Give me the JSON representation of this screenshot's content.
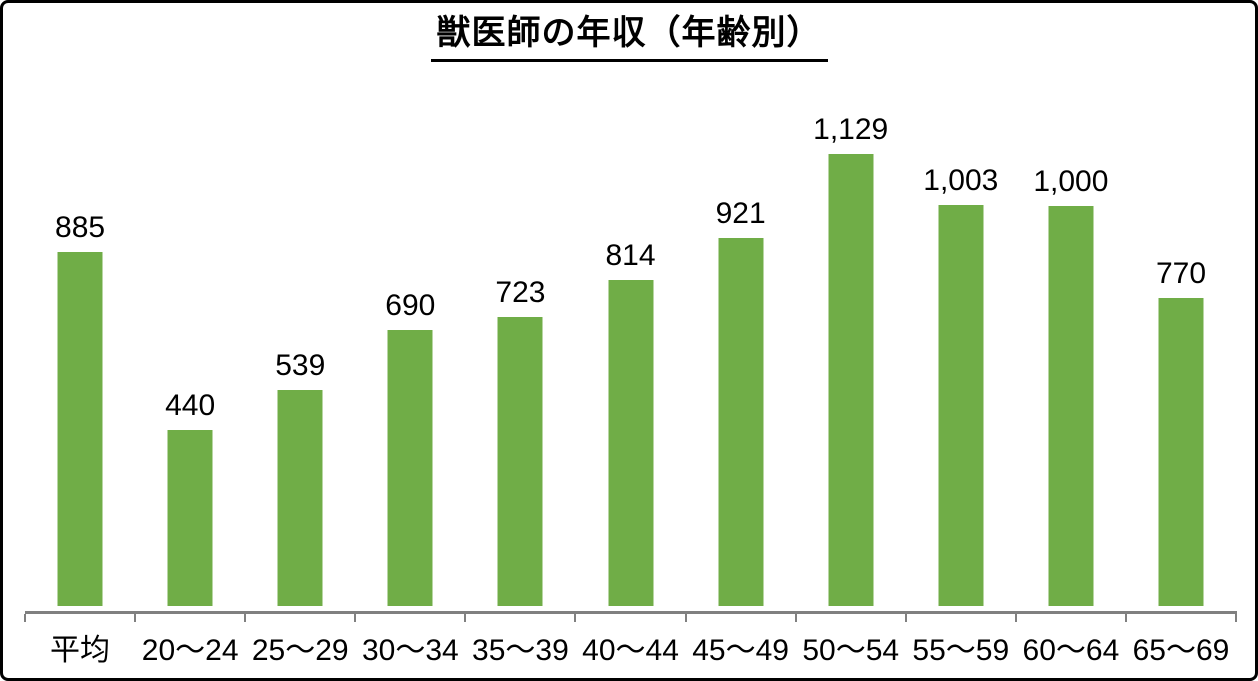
{
  "title": "獣医師の年収（年齢別）",
  "colors": {
    "bar": "#70AD47",
    "axis": "#808080",
    "text": "#000000",
    "border": "#000000",
    "background": "#ffffff"
  },
  "chart_data": {
    "type": "bar",
    "title": "獣医師の年収（年齢別）",
    "categories": [
      "平均",
      "20～24",
      "25～29",
      "30～34",
      "35～39",
      "40～44",
      "45～49",
      "50～54",
      "55～59",
      "60～64",
      "65～69"
    ],
    "values": [
      885,
      440,
      539,
      690,
      723,
      814,
      921,
      1129,
      1003,
      1000,
      770
    ],
    "value_labels": [
      "885",
      "440",
      "539",
      "690",
      "723",
      "814",
      "921",
      "1,129",
      "1,003",
      "1,000",
      "770"
    ],
    "series_name": "",
    "xlabel": "",
    "ylabel": "",
    "ylim": [
      0,
      1160
    ],
    "y_axis_visible": false,
    "gridlines": false,
    "legend": false,
    "data_labels": true,
    "bar_color": "#70AD47",
    "axis_line_color": "#808080"
  }
}
